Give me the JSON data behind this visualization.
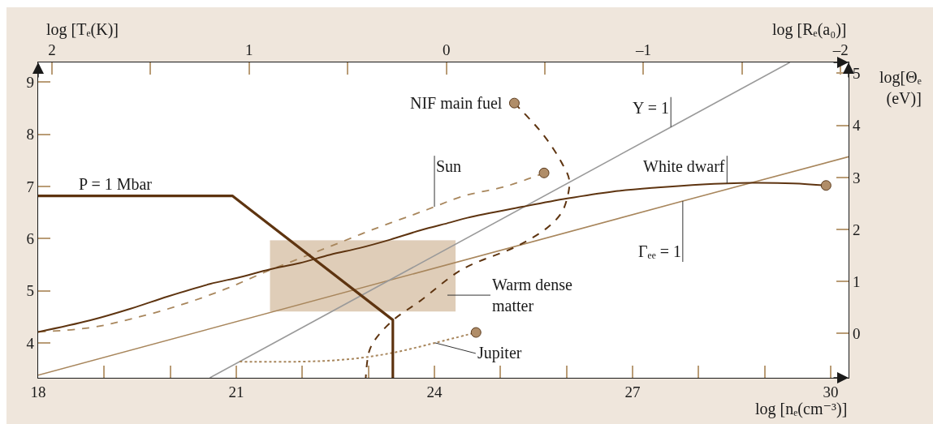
{
  "chart_data": {
    "type": "line",
    "xlabel": "log [nₑ(cm⁻³)]",
    "ylabel": "log [Tₑ(K)]",
    "x2label": "log [Rₑ(a₀)]",
    "y2label": "log[Θₑ (eV)]",
    "annotations": [
      "Warm dense matter"
    ],
    "xlim": [
      18,
      30.27
    ],
    "xticks": [
      18,
      {
        "value": 19,
        "label": null
      },
      {
        "value": 20,
        "label": null
      },
      21,
      {
        "value": 22,
        "label": null
      },
      {
        "value": 23,
        "label": null
      },
      24,
      {
        "value": 25,
        "label": null
      },
      {
        "value": 26,
        "label": null
      },
      27,
      {
        "value": 28,
        "label": null
      },
      {
        "value": 29,
        "label": null
      },
      30
    ],
    "ylim": [
      3.33,
      9.38
    ],
    "yticks": [
      4,
      5,
      6,
      7,
      8,
      9
    ],
    "x2lim": [
      2.07,
      -2.04
    ],
    "x2ticks": [
      2,
      {
        "value": 1.5,
        "label": null
      },
      1,
      {
        "value": 0.5,
        "label": null
      },
      0,
      {
        "value": -0.5,
        "label": null
      },
      {
        "value": -1,
        "label": "–1"
      },
      {
        "value": -1.5,
        "label": null
      },
      {
        "value": -2,
        "label": "–2"
      }
    ],
    "y2lim": [
      -0.85,
      5.21
    ],
    "y2ticks": [
      0,
      1,
      2,
      3,
      4,
      5
    ],
    "series": [
      {
        "color": "#dfcdb8",
        "x": [
          21.51,
          22.92,
          24.32
        ],
        "values": [
          5.96,
          5.96,
          5.96
        ],
        "lower": [
          4.6,
          4.6,
          4.6
        ],
        "upper": [
          5.96,
          5.96,
          5.96
        ]
      },
      {
        "name": "Γₑₑ = 1",
        "color": "#a8865c",
        "line_style": "solid",
        "x": [
          18,
          27.76,
          30.27
        ],
        "values": [
          3.38,
          6.72,
          7.57
        ]
      },
      {
        "name": "Y = 1",
        "color": "#9a9a9a",
        "line_style": "solid",
        "x": [
          20.6,
          27.58,
          29.38
        ],
        "values": [
          3.33,
          8.14,
          9.38
        ]
      },
      {
        "name": "Sun",
        "color": "#a8865c",
        "line_style": "dashed",
        "x": [
          18,
          18.78,
          19.41,
          20.14,
          20.83,
          21.44,
          21.96,
          22.42,
          23.1,
          23.79,
          24.0,
          24.42,
          25.1,
          25.66
        ],
        "values": [
          4.21,
          4.29,
          4.46,
          4.72,
          5.03,
          5.36,
          5.62,
          5.85,
          6.19,
          6.51,
          6.61,
          6.81,
          7.01,
          7.26
        ]
      },
      {
        "name": "Jupiter",
        "color": "#a8865c",
        "line_style": "dotted",
        "x": [
          21.05,
          21.96,
          22.65,
          23.33,
          24.01,
          24.63
        ],
        "values": [
          3.64,
          3.64,
          3.68,
          3.8,
          4.0,
          4.2
        ]
      },
      {
        "name": "White dwarf",
        "color": "#5e3410",
        "line_style": "solid",
        "x": [
          18,
          18.78,
          19.41,
          19.96,
          20.6,
          21.05,
          21.51,
          21.96,
          22.42,
          22.87,
          23.33,
          23.79,
          24.24,
          24.5,
          25.33,
          26.01,
          26.69,
          27.38,
          28.06,
          28.43,
          28.79,
          29.43,
          29.93
        ],
        "values": [
          4.21,
          4.43,
          4.66,
          4.89,
          5.13,
          5.26,
          5.41,
          5.53,
          5.69,
          5.82,
          5.98,
          6.16,
          6.31,
          6.4,
          6.61,
          6.77,
          6.9,
          6.98,
          7.04,
          7.06,
          7.07,
          7.06,
          7.02
        ]
      },
      {
        "name": "NIF main fuel",
        "color": "#5e3410",
        "line_style": "dashed",
        "x": [
          25.21,
          25.65,
          25.92,
          26.04,
          26.01,
          25.92,
          25.69,
          25.24,
          24.42,
          23.79,
          23.37,
          23.1,
          23.01,
          22.96
        ],
        "values": [
          8.6,
          7.99,
          7.47,
          7.13,
          6.78,
          6.49,
          6.19,
          5.85,
          5.41,
          4.81,
          4.43,
          4.06,
          3.83,
          3.33
        ]
      },
      {
        "name": "P = 1 Mbar",
        "color": "#5e3410",
        "line_style": "solid",
        "x": [
          18,
          20.94,
          23.37,
          23.37
        ],
        "values": [
          6.82,
          6.82,
          4.44,
          3.33
        ]
      },
      {
        "type": "scatter",
        "color": "#b08d68",
        "marker": "circle",
        "x": [
          25.21,
          25.66,
          29.93,
          24.63
        ],
        "values": [
          8.6,
          7.26,
          7.02,
          4.2
        ]
      }
    ]
  }
}
